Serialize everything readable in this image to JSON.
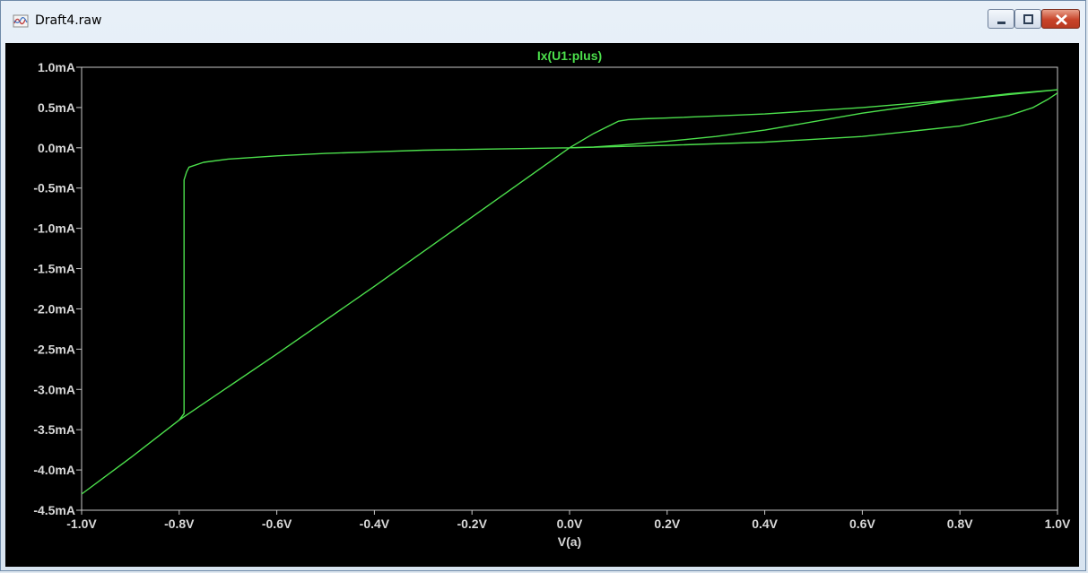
{
  "window": {
    "title": "Draft4.raw",
    "icons": [
      "waveform-app-icon",
      "minimize-icon",
      "maximize-icon",
      "close-icon"
    ]
  },
  "colors": {
    "background": "#000000",
    "trace": "#4ce04c",
    "axis": "#c8c8c8",
    "tick_label": "#d8d8d8"
  },
  "chart_data": {
    "type": "line",
    "title": "",
    "xlabel": "V(a)",
    "ylabel": "",
    "xlim": [
      -1.0,
      1.0
    ],
    "ylim": [
      -4.5,
      1.0
    ],
    "x_ticks": [
      "-1.0V",
      "-0.8V",
      "-0.6V",
      "-0.4V",
      "-0.2V",
      "0.0V",
      "0.2V",
      "0.4V",
      "0.6V",
      "0.8V",
      "1.0V"
    ],
    "y_ticks": [
      "1.0mA",
      "0.5mA",
      "0.0mA",
      "-0.5mA",
      "-1.0mA",
      "-1.5mA",
      "-2.0mA",
      "-2.5mA",
      "-3.0mA",
      "-3.5mA",
      "-4.0mA",
      "-4.5mA"
    ],
    "grid": false,
    "series": [
      {
        "name": "Ix(U1:plus)",
        "x": [
          -1.0,
          -0.9,
          -0.8,
          -0.6,
          -0.4,
          -0.2,
          0.0,
          0.05,
          0.08,
          0.1,
          0.12,
          0.15,
          0.2,
          0.4,
          0.6,
          0.8,
          1.0,
          0.9,
          0.8,
          0.6,
          0.4,
          0.3,
          0.2,
          0.1,
          0.05,
          0.0,
          -0.1,
          -0.2,
          -0.3,
          -0.4,
          -0.5,
          -0.6,
          -0.7,
          -0.75,
          -0.78,
          -0.785,
          -0.79,
          -0.79,
          -0.79,
          -0.8,
          -0.9,
          -1.0
        ],
        "y": [
          -4.3,
          -3.85,
          -3.38,
          -2.56,
          -1.72,
          -0.86,
          0.0,
          0.18,
          0.27,
          0.33,
          0.35,
          0.36,
          0.37,
          0.42,
          0.5,
          0.6,
          0.72,
          0.67,
          0.6,
          0.43,
          0.22,
          0.14,
          0.08,
          0.03,
          0.01,
          0.0,
          -0.01,
          -0.02,
          -0.03,
          -0.05,
          -0.07,
          -0.1,
          -0.14,
          -0.18,
          -0.24,
          -0.3,
          -0.4,
          -2.0,
          -3.3,
          -3.38,
          -3.85,
          -4.3
        ]
      },
      {
        "name": "",
        "x": [
          0.0,
          0.2,
          0.4,
          0.6,
          0.8,
          0.9,
          0.95,
          0.98,
          1.0
        ],
        "y": [
          0.0,
          0.03,
          0.07,
          0.14,
          0.27,
          0.4,
          0.5,
          0.6,
          0.68
        ]
      }
    ]
  }
}
